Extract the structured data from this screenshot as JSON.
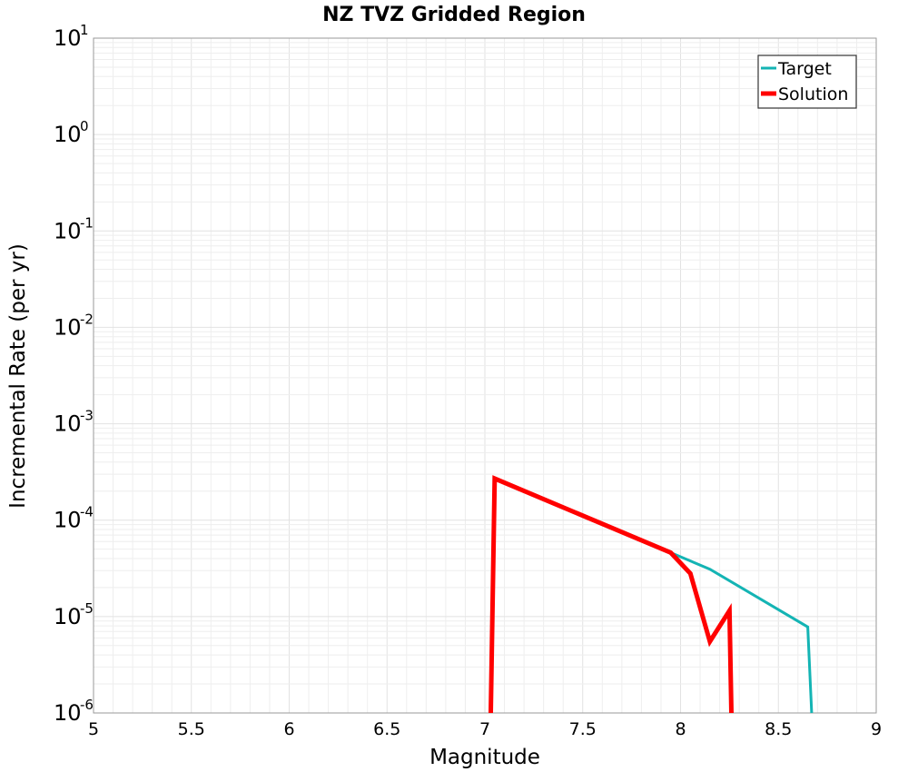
{
  "chart_data": {
    "type": "line",
    "title": "NZ TVZ Gridded Region",
    "xlabel": "Magnitude",
    "ylabel": "Incremental Rate (per yr)",
    "xlim": [
      5,
      9
    ],
    "ylim": [
      1e-06,
      10
    ],
    "yscale": "log",
    "grid": true,
    "legend_position": "top-right",
    "x_ticks": [
      "5",
      "5.5",
      "6",
      "6.5",
      "7",
      "7.5",
      "8",
      "8.5",
      "9"
    ],
    "y_ticks": [
      {
        "value": 1e-06,
        "base": "10",
        "exp": "-6"
      },
      {
        "value": 1e-05,
        "base": "10",
        "exp": "-5"
      },
      {
        "value": 0.0001,
        "base": "10",
        "exp": "-4"
      },
      {
        "value": 0.001,
        "base": "10",
        "exp": "-3"
      },
      {
        "value": 0.01,
        "base": "10",
        "exp": "-2"
      },
      {
        "value": 0.1,
        "base": "10",
        "exp": "-1"
      },
      {
        "value": 1,
        "base": "10",
        "exp": "0"
      },
      {
        "value": 10,
        "base": "10",
        "exp": "1"
      }
    ],
    "series": [
      {
        "name": "Target",
        "color": "#14b4b4",
        "line_width": 3,
        "points": [
          {
            "x": 7.03,
            "y": 1e-06
          },
          {
            "x": 7.05,
            "y": 0.00027
          },
          {
            "x": 7.95,
            "y": 4.6e-05
          },
          {
            "x": 8.15,
            "y": 3.1e-05
          },
          {
            "x": 8.65,
            "y": 7.8e-06
          },
          {
            "x": 8.67,
            "y": 1e-06
          }
        ]
      },
      {
        "name": "Solution",
        "color": "#ff0000",
        "line_width": 5,
        "points": [
          {
            "x": 7.03,
            "y": 1e-06
          },
          {
            "x": 7.05,
            "y": 0.00027
          },
          {
            "x": 7.95,
            "y": 4.6e-05
          },
          {
            "x": 8.05,
            "y": 2.8e-05
          },
          {
            "x": 8.15,
            "y": 5.5e-06
          },
          {
            "x": 8.25,
            "y": 1.15e-05
          },
          {
            "x": 8.26,
            "y": 1e-06
          }
        ]
      }
    ]
  }
}
